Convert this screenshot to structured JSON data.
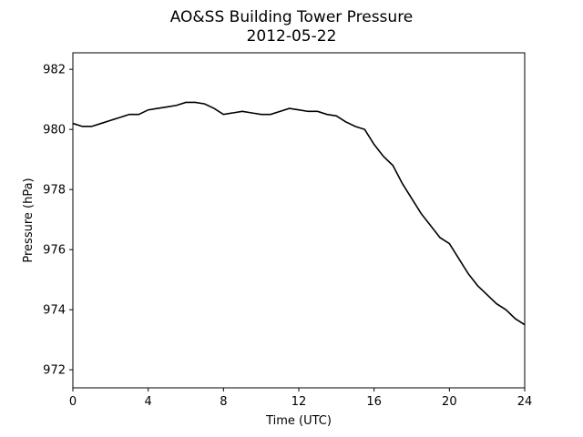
{
  "chart_data": {
    "type": "line",
    "title": "AO&SS Building Tower Pressure",
    "subtitle": "2012-05-22",
    "xlabel": "Time (UTC)",
    "ylabel": "Pressure (hPa)",
    "xlim": [
      0,
      24
    ],
    "ylim": [
      971.4,
      982.55
    ],
    "xticks": [
      0,
      4,
      8,
      12,
      16,
      20,
      24
    ],
    "yticks": [
      972,
      974,
      976,
      978,
      980,
      982
    ],
    "grid": false,
    "line_color": "#000000",
    "series": [
      {
        "x": [
          0,
          0.5,
          1,
          1.5,
          2,
          2.5,
          3,
          3.5,
          4,
          4.5,
          5,
          5.5,
          6,
          6.5,
          7,
          7.5,
          8,
          8.5,
          9,
          9.5,
          10,
          10.5,
          11,
          11.5,
          12,
          12.5,
          13,
          13.5,
          14,
          14.5,
          15,
          15.5,
          16,
          16.5,
          17,
          17.5,
          18,
          18.5,
          19,
          19.5,
          20,
          20.5,
          21,
          21.5,
          22,
          22.5,
          23,
          23.5,
          24
        ],
        "values": [
          980.2,
          980.1,
          980.1,
          980.2,
          980.3,
          980.4,
          980.5,
          980.5,
          980.65,
          980.7,
          980.75,
          980.8,
          980.9,
          980.9,
          980.85,
          980.7,
          980.5,
          980.55,
          980.6,
          980.55,
          980.5,
          980.5,
          980.6,
          980.7,
          980.65,
          980.6,
          980.6,
          980.5,
          980.45,
          980.25,
          980.1,
          980.0,
          979.5,
          979.1,
          978.8,
          978.2,
          977.7,
          977.2,
          976.8,
          976.4,
          976.2,
          975.7,
          975.2,
          974.8,
          974.5,
          974.2,
          974.0,
          973.7,
          973.5
        ]
      }
    ]
  }
}
